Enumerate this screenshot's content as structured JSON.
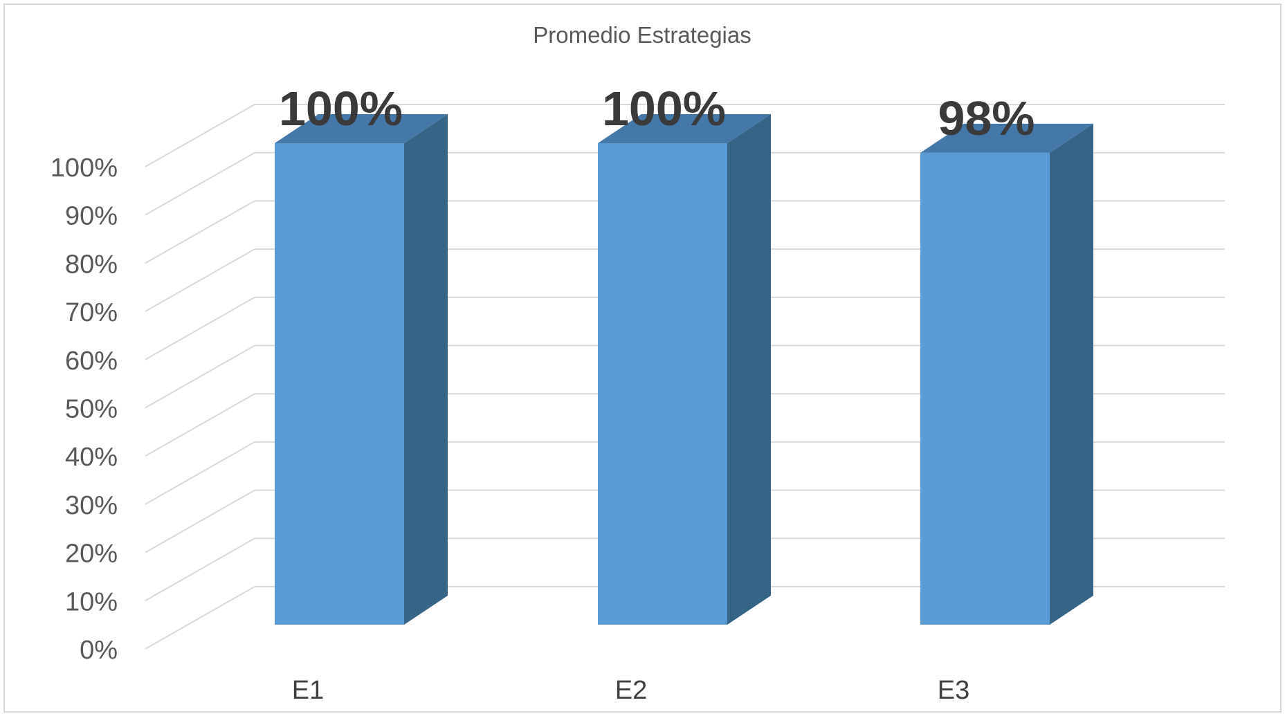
{
  "chart_data": {
    "type": "bar",
    "style": "3d-column",
    "title": "Promedio Estrategias",
    "xlabel": "",
    "ylabel": "",
    "categories": [
      "E1",
      "E2",
      "E3"
    ],
    "values": [
      100,
      100,
      98
    ],
    "data_labels": [
      "100%",
      "100%",
      "98%"
    ],
    "ylim": [
      0,
      100
    ],
    "yticks": [
      "0%",
      "10%",
      "20%",
      "30%",
      "40%",
      "50%",
      "60%",
      "70%",
      "80%",
      "90%",
      "100%"
    ],
    "grid": true,
    "legend": "none",
    "colors": {
      "bar_front": "#5B9BD5",
      "bar_side": "#366487",
      "bar_top": "#4478A8",
      "grid": "#D9D9D9",
      "text": "#595959"
    }
  }
}
